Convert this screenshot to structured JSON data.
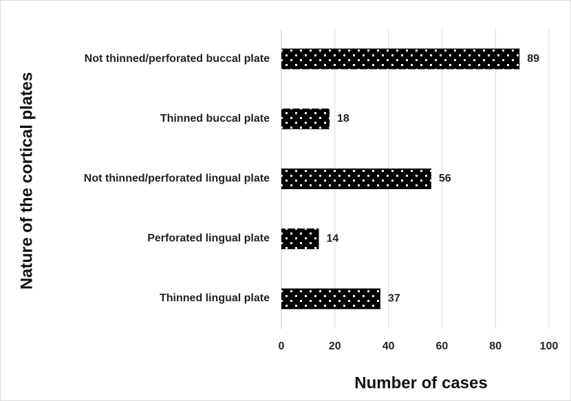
{
  "chart_data": {
    "type": "bar",
    "orientation": "horizontal",
    "categories": [
      "Not thinned/perforated buccal plate",
      "Thinned buccal plate",
      "Not thinned/perforated lingual plate",
      "Perforated lingual plate",
      "Thinned lingual plate"
    ],
    "values": [
      89,
      18,
      56,
      14,
      37
    ],
    "color": "#000000",
    "xlim": [
      0,
      100
    ],
    "xticks": [
      0,
      20,
      40,
      60,
      80,
      100
    ],
    "xlabel": "Number of cases",
    "ylabel": "Nature of the cortical plates",
    "grid": true
  }
}
